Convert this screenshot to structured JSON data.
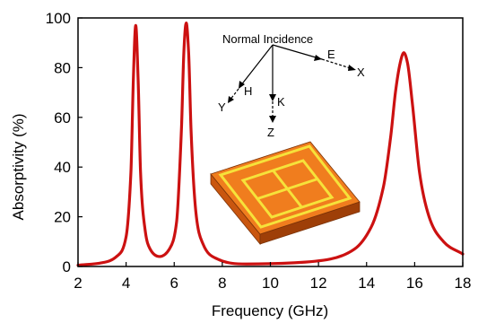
{
  "chart_data": {
    "type": "line",
    "title": "",
    "xlabel": "Frequency (GHz)",
    "ylabel": "Absorptivity (%)",
    "xlim": [
      2,
      18
    ],
    "ylim": [
      0,
      100
    ],
    "x_ticks": [
      2,
      4,
      6,
      8,
      10,
      12,
      14,
      16,
      18
    ],
    "y_ticks": [
      0,
      20,
      40,
      60,
      80,
      100
    ],
    "grid": false,
    "legend": "none",
    "series": [
      {
        "color": "#cc1111",
        "peaks": [
          {
            "frequency_ghz": 4.4,
            "absorptivity_pct": 97
          },
          {
            "frequency_ghz": 6.5,
            "absorptivity_pct": 98
          },
          {
            "frequency_ghz": 15.55,
            "absorptivity_pct": 86
          }
        ],
        "x": [
          2.0,
          3.0,
          3.6,
          4.0,
          4.2,
          4.3,
          4.4,
          4.5,
          4.6,
          4.8,
          5.0,
          5.4,
          5.8,
          6.1,
          6.3,
          6.4,
          6.5,
          6.6,
          6.7,
          6.9,
          7.2,
          7.8,
          9.0,
          11.0,
          12.5,
          13.5,
          14.2,
          14.7,
          15.0,
          15.2,
          15.4,
          15.55,
          15.7,
          15.9,
          16.2,
          16.6,
          17.2,
          18.0
        ],
        "y": [
          0.5,
          1.5,
          4,
          12,
          38,
          75,
          97,
          75,
          38,
          14,
          7,
          4,
          7,
          18,
          55,
          86,
          98,
          86,
          55,
          22,
          9,
          3,
          1,
          1.5,
          3,
          7,
          16,
          32,
          52,
          70,
          82,
          86,
          82,
          66,
          38,
          20,
          10,
          5
        ]
      }
    ],
    "annotations": {
      "title": "Normal Incidence",
      "axes": [
        "E",
        "X",
        "H",
        "Y",
        "K",
        "Z"
      ]
    }
  }
}
